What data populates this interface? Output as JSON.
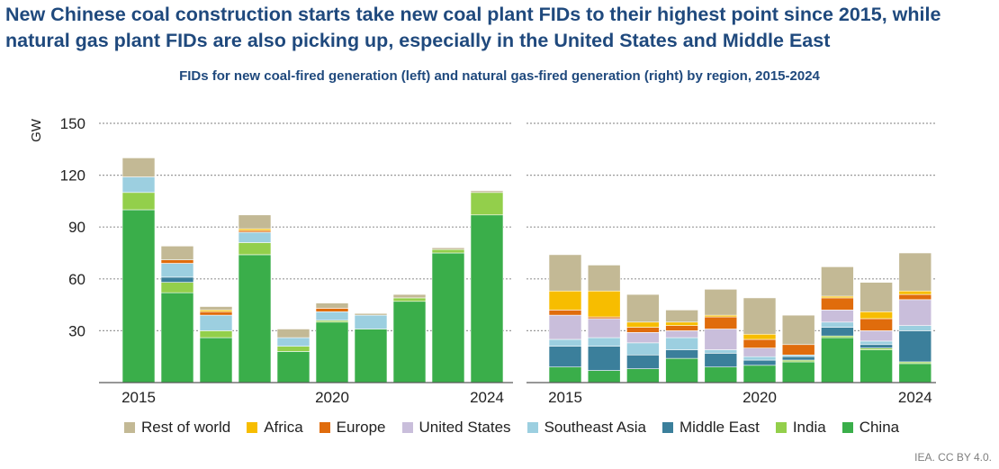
{
  "title": "New Chinese coal construction starts take new coal plant FIDs to their highest point since 2015, while natural gas plant FIDs are also picking up, especially in the United States and Middle East",
  "subtitle": "FIDs for new coal-fired generation (left) and natural gas-fired generation (right) by region, 2015-2024",
  "credit": "IEA. CC BY 4.0.",
  "colors": {
    "China": "#3aae4a",
    "India": "#93cf4b",
    "Middle East": "#3b7f9b",
    "Southeast Asia": "#9ccfe0",
    "United States": "#c9bedb",
    "Europe": "#e06c0c",
    "Africa": "#f7bd00",
    "Rest of world": "#c3b995",
    "grid": "#999999",
    "axis": "#595959"
  },
  "chart_data": [
    {
      "type": "bar",
      "stacked": true,
      "categories": [
        "2015",
        "2016",
        "2017",
        "2018",
        "2019",
        "2020",
        "2021",
        "2022",
        "2023",
        "2024"
      ],
      "tick_labels": [
        "2015",
        "",
        "",
        "",
        "",
        "2020",
        "",
        "",
        "",
        "2024"
      ],
      "ylabel": "GW",
      "ylim": [
        0,
        150
      ],
      "yticks": [
        30,
        60,
        90,
        120,
        150
      ],
      "grid": true,
      "series": [
        {
          "name": "China",
          "values": [
            100,
            52,
            26,
            74,
            18,
            35,
            31,
            47,
            75,
            97
          ]
        },
        {
          "name": "India",
          "values": [
            10,
            6,
            4,
            7,
            3,
            1,
            0,
            2,
            2,
            13
          ]
        },
        {
          "name": "Middle East",
          "values": [
            0,
            3,
            0,
            0,
            0,
            0,
            0,
            0,
            0,
            0
          ]
        },
        {
          "name": "Southeast Asia",
          "values": [
            9,
            8,
            9,
            6,
            5,
            5,
            8,
            0,
            0,
            0
          ]
        },
        {
          "name": "United States",
          "values": [
            0,
            0,
            0,
            0,
            0,
            0,
            0,
            0,
            0,
            0
          ]
        },
        {
          "name": "Europe",
          "values": [
            0,
            2,
            2,
            1,
            0,
            2,
            0,
            0,
            0,
            0
          ]
        },
        {
          "name": "Africa",
          "values": [
            0,
            0,
            1,
            1,
            0,
            0,
            0,
            0,
            0,
            0
          ]
        },
        {
          "name": "Rest of world",
          "values": [
            11,
            8,
            2,
            8,
            5,
            3,
            1,
            2,
            1,
            1
          ]
        }
      ]
    },
    {
      "type": "bar",
      "stacked": true,
      "categories": [
        "2015",
        "2016",
        "2017",
        "2018",
        "2019",
        "2020",
        "2021",
        "2022",
        "2023",
        "2024"
      ],
      "tick_labels": [
        "2015",
        "",
        "",
        "",
        "",
        "2020",
        "",
        "",
        "",
        "2024"
      ],
      "ylim": [
        0,
        150
      ],
      "yticks": [
        30,
        60,
        90,
        120,
        150
      ],
      "grid": true,
      "series": [
        {
          "name": "China",
          "values": [
            9,
            7,
            8,
            14,
            9,
            10,
            12,
            26,
            19,
            11
          ]
        },
        {
          "name": "India",
          "values": [
            0,
            0,
            0,
            0,
            0,
            0,
            1,
            1,
            1,
            1
          ]
        },
        {
          "name": "Middle East",
          "values": [
            12,
            14,
            8,
            5,
            8,
            3,
            2,
            5,
            2,
            18
          ]
        },
        {
          "name": "Southeast Asia",
          "values": [
            4,
            5,
            7,
            7,
            2,
            2,
            1,
            3,
            2,
            3
          ]
        },
        {
          "name": "United States",
          "values": [
            14,
            11,
            6,
            4,
            12,
            5,
            0,
            7,
            6,
            15
          ]
        },
        {
          "name": "Europe",
          "values": [
            3,
            1,
            3,
            3,
            7,
            5,
            6,
            7,
            7,
            3
          ]
        },
        {
          "name": "Africa",
          "values": [
            11,
            15,
            3,
            2,
            1,
            3,
            0,
            1,
            4,
            2
          ]
        },
        {
          "name": "Rest of world",
          "values": [
            21,
            15,
            16,
            7,
            15,
            21,
            17,
            17,
            17,
            22
          ]
        }
      ]
    }
  ],
  "legend": [
    "Rest of world",
    "Africa",
    "Europe",
    "United States",
    "Southeast Asia",
    "Middle East",
    "India",
    "China"
  ]
}
